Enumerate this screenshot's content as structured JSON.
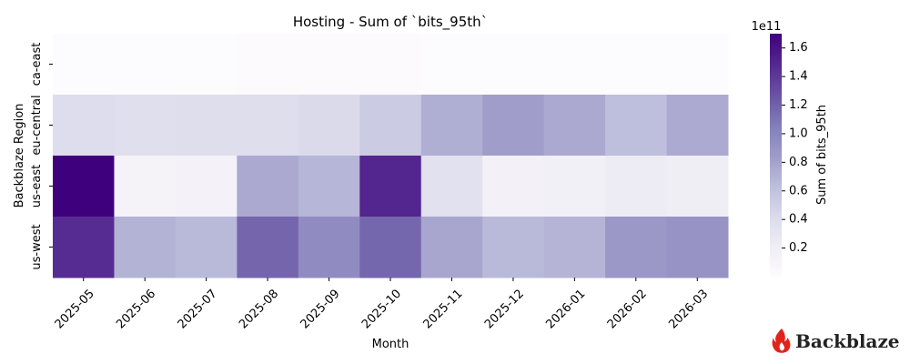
{
  "chart_data": {
    "type": "heatmap",
    "title": "Hosting - Sum of `bits_95th`",
    "xlabel": "Month",
    "ylabel": "Backblaze Region",
    "x": [
      "2025-05",
      "2025-06",
      "2025-07",
      "2025-08",
      "2025-09",
      "2025-10",
      "2025-11",
      "2025-12",
      "2026-01",
      "2026-02",
      "2026-03"
    ],
    "y": [
      "ca-east",
      "eu-central",
      "us-east",
      "us-west"
    ],
    "values": [
      [
        0.3,
        0.3,
        0.4,
        0.8,
        0.8,
        0.8,
        0.6,
        0.6,
        0.6,
        0.6,
        0.6
      ],
      [
        39,
        37,
        38,
        38,
        42,
        53,
        73,
        83,
        76,
        62,
        75
      ],
      [
        170,
        12,
        13,
        76,
        68,
        150,
        35,
        15,
        16,
        23,
        20
      ],
      [
        146,
        70,
        66,
        118,
        95,
        117,
        78,
        66,
        69,
        87,
        90
      ]
    ],
    "value_scale": "1e9",
    "colormap": "Purples",
    "colorbar": {
      "label": "Sum of bits_95th",
      "multiplier": "1e11",
      "ticks": [
        "0.2",
        "0.4",
        "0.6",
        "0.8",
        "1.0",
        "1.2",
        "1.4",
        "1.6"
      ],
      "tick_values": [
        0.2,
        0.4,
        0.6,
        0.8,
        1.0,
        1.2,
        1.4,
        1.6
      ],
      "range": [
        0.0,
        1.7
      ]
    }
  },
  "logo": {
    "text": "Backblaze",
    "icon": "flame-icon",
    "color": "#e2231a"
  }
}
